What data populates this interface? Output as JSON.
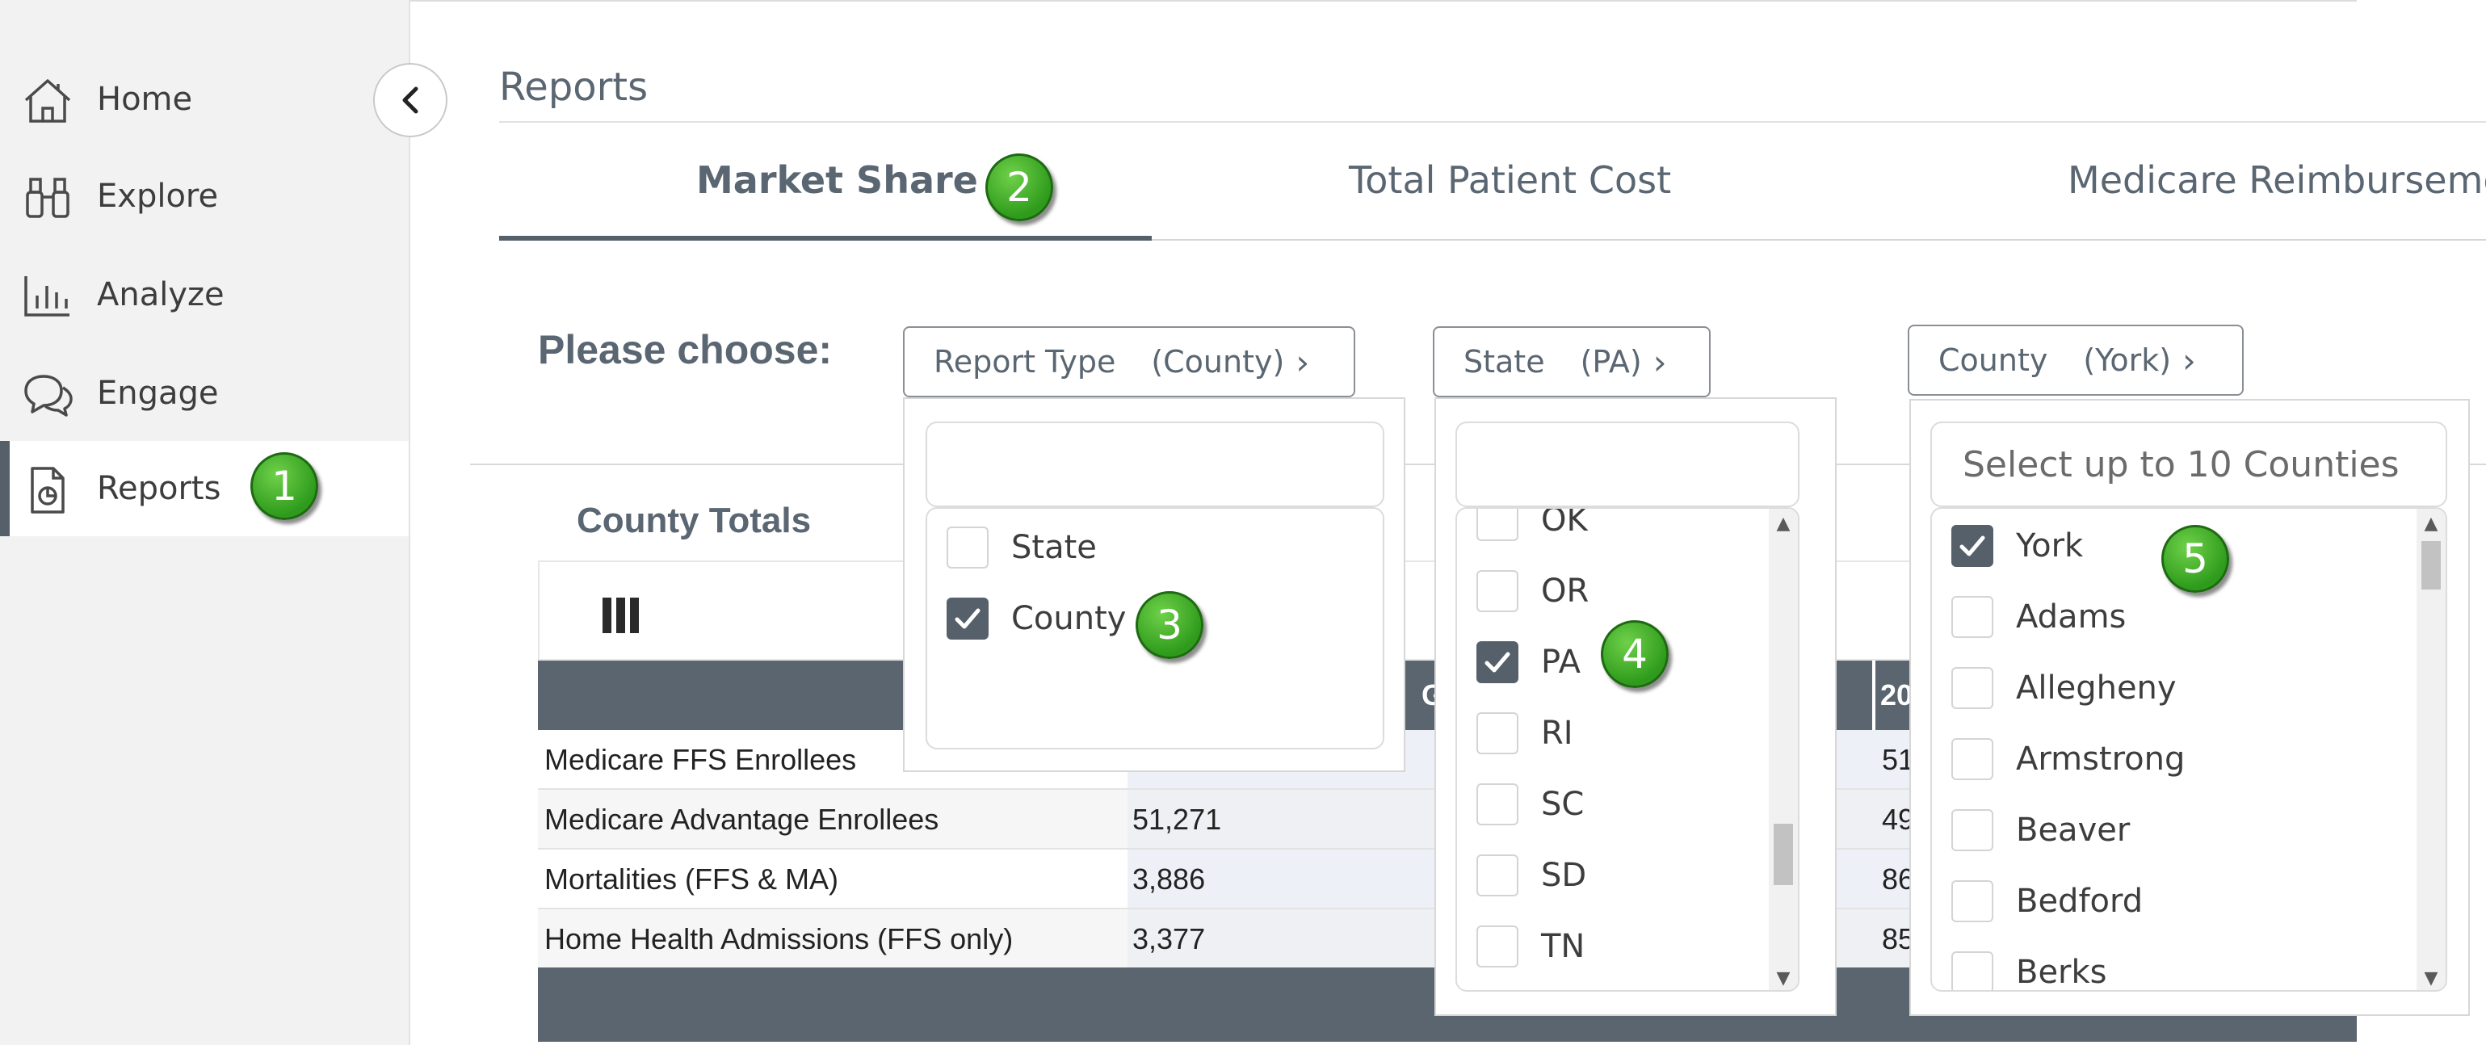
{
  "sidebar": {
    "items": [
      {
        "label": "Home",
        "icon": "home-icon"
      },
      {
        "label": "Explore",
        "icon": "binoculars-icon"
      },
      {
        "label": "Analyze",
        "icon": "bar-chart-icon"
      },
      {
        "label": "Engage",
        "icon": "chat-bubbles-icon"
      },
      {
        "label": "Reports",
        "icon": "report-document-icon",
        "active": true
      }
    ],
    "collapse_icon": "chevron-left-icon"
  },
  "page": {
    "title": "Reports"
  },
  "tabs": [
    {
      "label": "Market Share",
      "active": true
    },
    {
      "label": "Total Patient Cost"
    },
    {
      "label": "Medicare Reimburseme"
    }
  ],
  "filters": {
    "choose_label": "Please choose:",
    "report_type": {
      "label": "Report Type",
      "value": "(County)"
    },
    "state": {
      "label": "State",
      "value": "(PA)"
    },
    "county": {
      "label": "County",
      "value": "(York)"
    }
  },
  "report_type_dropdown": {
    "options": [
      {
        "label": "State",
        "checked": false
      },
      {
        "label": "County",
        "checked": true
      }
    ]
  },
  "state_dropdown": {
    "options": [
      {
        "label": "OK",
        "checked": false
      },
      {
        "label": "OR",
        "checked": false
      },
      {
        "label": "PA",
        "checked": true
      },
      {
        "label": "RI",
        "checked": false
      },
      {
        "label": "SC",
        "checked": false
      },
      {
        "label": "SD",
        "checked": false
      },
      {
        "label": "TN",
        "checked": false
      }
    ]
  },
  "county_dropdown": {
    "placeholder": "Select up to 10 Counties",
    "options": [
      {
        "label": "York",
        "checked": true
      },
      {
        "label": "Adams",
        "checked": false
      },
      {
        "label": "Allegheny",
        "checked": false
      },
      {
        "label": "Armstrong",
        "checked": false
      },
      {
        "label": "Beaver",
        "checked": false
      },
      {
        "label": "Bedford",
        "checked": false
      },
      {
        "label": "Berks",
        "checked": false
      }
    ]
  },
  "county_totals": {
    "title": "County Totals",
    "columns_icon": "columns-icon",
    "header_visible": [
      "G",
      "20"
    ],
    "rows": [
      {
        "label": "Medicare FFS Enrollees",
        "col1": "",
        "col3": "51"
      },
      {
        "label": "Medicare Advantage Enrollees",
        "col1": "51,271",
        "col3": "49"
      },
      {
        "label": "Mortalities (FFS & MA)",
        "col1": "3,886",
        "col3": "86"
      },
      {
        "label": "Home Health Admissions (FFS only)",
        "col1": "3,377",
        "col3": "85"
      }
    ]
  },
  "callouts": [
    "1",
    "2",
    "3",
    "4",
    "5"
  ],
  "colors": {
    "accent": "#56606a",
    "callout_green": "#3aa827",
    "table_header": "#5a656f"
  }
}
